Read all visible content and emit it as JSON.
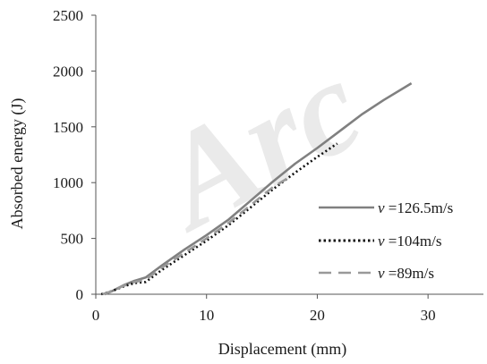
{
  "watermark": "Arc",
  "chart_data": {
    "type": "line",
    "title": "",
    "xlabel": "Displacement  (mm)",
    "ylabel": "Absorbed energy  (J)",
    "xlim": [
      0,
      35
    ],
    "ylim": [
      0,
      2500
    ],
    "xticks": [
      "0",
      "10",
      "20",
      "30"
    ],
    "yticks": [
      "0",
      "500",
      "1000",
      "1500",
      "2000",
      "2500"
    ],
    "grid": false,
    "legend_position": "right",
    "series": [
      {
        "name": "v =126.5m/s",
        "legend_var": "v",
        "legend_rest": " =126.5m/s",
        "style": "solid",
        "color": "#808080",
        "x": [
          0.8,
          1.5,
          2.5,
          3.5,
          4.5,
          6,
          8,
          10,
          12,
          14,
          16,
          18,
          20,
          22,
          24,
          26,
          28.5
        ],
        "y": [
          0,
          30,
          80,
          120,
          150,
          260,
          400,
          530,
          670,
          840,
          1010,
          1170,
          1310,
          1460,
          1610,
          1740,
          1890
        ]
      },
      {
        "name": "v =104m/s",
        "legend_var": "v",
        "legend_rest": " =104m/s",
        "style": "dotted",
        "color": "#111111",
        "x": [
          0.5,
          1.5,
          2.5,
          3.5,
          4.5,
          6,
          8,
          10,
          12,
          14,
          16,
          18,
          20,
          21.8
        ],
        "y": [
          0,
          30,
          70,
          100,
          110,
          220,
          350,
          480,
          620,
          780,
          940,
          1090,
          1230,
          1350
        ]
      },
      {
        "name": "v =89m/s",
        "legend_var": "v",
        "legend_rest": " =89m/s",
        "style": "dashed",
        "color": "#999999",
        "x": [
          0.6,
          1.5,
          2.5,
          3.5,
          4.5,
          6,
          8,
          10,
          12,
          14,
          16,
          17.5
        ],
        "y": [
          0,
          30,
          75,
          110,
          130,
          240,
          370,
          500,
          640,
          800,
          960,
          1050
        ]
      }
    ]
  }
}
